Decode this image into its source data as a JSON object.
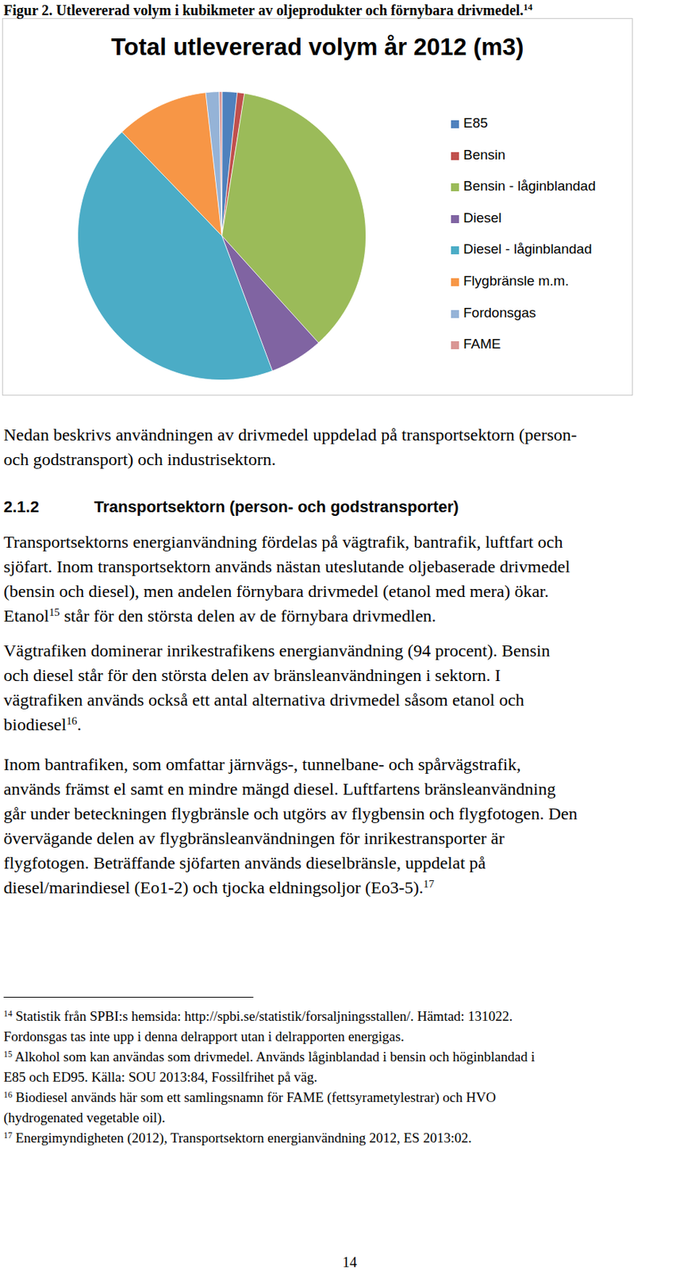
{
  "caption": [
    "Figur 2. Utlevererad volym i kubikmeter av oljeprodukter och förnybara drivmedel.",
    {
      "sup": "14"
    }
  ],
  "chart_data": {
    "type": "pie",
    "title": "Total utlevererad volym år 2012 (m3)",
    "categories": [
      "E85",
      "Bensin",
      "Bensin - låginblandad",
      "Diesel",
      "Diesel - låginblandad",
      "Flygbränsle m.m.",
      "Fordonsgas",
      "FAME"
    ],
    "values": [
      187000,
      88000,
      3938000,
      660000,
      4785000,
      1144000,
      165000,
      33000
    ],
    "colors": [
      "#4f81bd",
      "#c0504d",
      "#9bbb59",
      "#8064a2",
      "#4bacc6",
      "#f79646",
      "#95b3d7",
      "#d99694"
    ],
    "legend": "right"
  },
  "intro": [
    [
      "Nedan beskrivs användningen av drivmedel uppdelad på transportsektorn (person-"
    ],
    [
      "och godstransport) och industrisektorn."
    ]
  ],
  "heading": {
    "number": "2.1.2",
    "text": "Transportsektorn (person- och godstransporter)"
  },
  "paragraphs": [
    [
      [
        "Transportsektorns energianvändning fördelas på vägtrafik, bantrafik, luftfart och"
      ],
      [
        "sjöfart. Inom transportsektorn används nästan uteslutande oljebaserade drivmedel"
      ],
      [
        "(bensin och diesel), men andelen förnybara drivmedel (etanol med mera) ökar."
      ],
      [
        "Etanol",
        {
          "sup": "15"
        },
        " står för den största delen av de förnybara drivmedlen."
      ]
    ],
    [
      [
        "Vägtrafiken dominerar inrikestrafikens energianvändning (94 procent). Bensin"
      ],
      [
        "och diesel står för den största delen av bränsleanvändningen i sektorn. I"
      ],
      [
        "vägtrafiken används också ett antal alternativa drivmedel såsom etanol och"
      ],
      [
        "biodiesel",
        {
          "sup": "16"
        },
        "."
      ]
    ],
    [
      [
        "Inom bantrafiken, som omfattar järnvägs-, tunnelbane- och spårvägstrafik,"
      ],
      [
        "används främst el samt en mindre mängd diesel. Luftfartens bränsleanvändning"
      ],
      [
        "går under beteckningen flygbränsle och utgörs av flygbensin och flygfotogen. Den"
      ],
      [
        "övervägande delen av flygbränsleanvändningen för inrikestransporter är"
      ],
      [
        "flygfotogen. Beträffande sjöfarten används dieselbränsle, uppdelat på"
      ],
      [
        "diesel/marindiesel (Eo1-2) och tjocka eldningsoljor (Eo3-5).",
        {
          "sup": "17"
        }
      ]
    ]
  ],
  "footnotes": [
    [
      {
        "sup": "14"
      },
      " Statistik från SPBI:s hemsida: http://spbi.se/statistik/forsaljningsstallen/. Hämtad: 131022."
    ],
    [
      "Fordonsgas tas inte upp i denna delrapport utan i delrapporten energigas."
    ],
    [
      {
        "sup": "15"
      },
      " Alkohol som kan användas som drivmedel. Används låginblandad i bensin och höginblandad i"
    ],
    [
      "E85 och ED95. Källa: SOU 2013:84, Fossilfrihet på väg."
    ],
    [
      {
        "sup": "16"
      },
      " Biodiesel används här som ett samlingsnamn för FAME (fettsyrametylestrar) och HVO"
    ],
    [
      "(hydrogenated vegetable oil)."
    ],
    [
      {
        "sup": "17"
      },
      " Energimyndigheten (2012), Transportsektorn energianvändning 2012, ES 2013:02."
    ]
  ],
  "page_number": "14"
}
